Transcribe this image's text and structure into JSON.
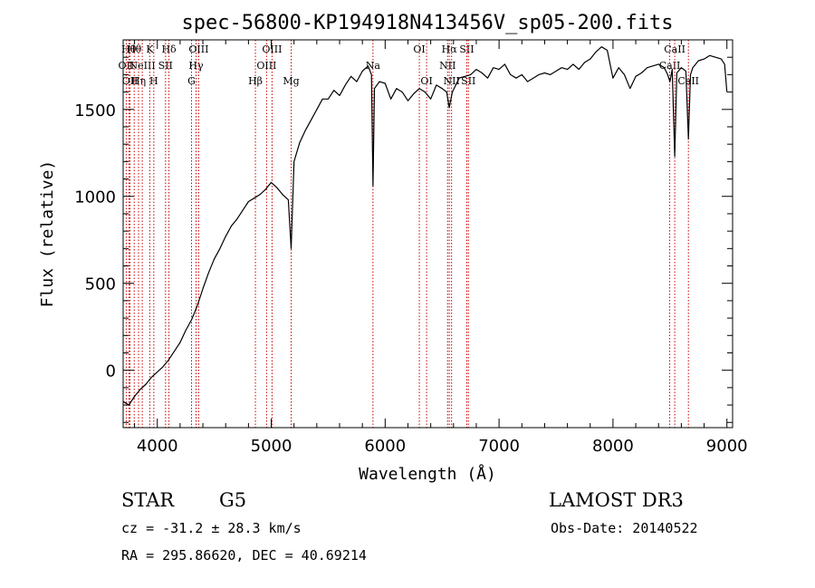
{
  "title": "spec-56800-KP194918N413456V_sp05-200.fits",
  "info": {
    "class": "STAR",
    "subclass": "G5",
    "survey": "LAMOST DR3",
    "cz": "cz = -31.2 ± 28.3 km/s",
    "obs_date": "Obs-Date: 20140522",
    "coords": "RA = 295.86620, DEC =  40.69214"
  },
  "colors": {
    "line_marker": "#cc0000",
    "spectrum": "#000000",
    "axis": "#000000"
  },
  "chart_data": {
    "type": "line",
    "title": "spec-56800-KP194918N413456V_sp05-200.fits",
    "xlabel": "Wavelength (Å)",
    "ylabel": "Flux (relative)",
    "xlim": [
      3700,
      9050
    ],
    "ylim": [
      -330,
      1900
    ],
    "xticks": [
      4000,
      5000,
      6000,
      7000,
      8000,
      9000
    ],
    "yticks": [
      0,
      500,
      1000,
      1500
    ],
    "series": [
      {
        "name": "flux",
        "x": [
          3700,
          3750,
          3800,
          3850,
          3900,
          3950,
          4000,
          4050,
          4100,
          4150,
          4200,
          4250,
          4300,
          4350,
          4400,
          4450,
          4500,
          4550,
          4600,
          4650,
          4700,
          4750,
          4800,
          4850,
          4900,
          4950,
          5000,
          5050,
          5100,
          5150,
          5175,
          5200,
          5250,
          5300,
          5350,
          5400,
          5450,
          5500,
          5550,
          5600,
          5650,
          5700,
          5750,
          5800,
          5850,
          5880,
          5893,
          5906,
          5950,
          6000,
          6050,
          6100,
          6150,
          6200,
          6250,
          6300,
          6350,
          6400,
          6450,
          6500,
          6540,
          6563,
          6590,
          6650,
          6700,
          6750,
          6800,
          6850,
          6900,
          6950,
          7000,
          7050,
          7100,
          7150,
          7200,
          7250,
          7300,
          7350,
          7400,
          7450,
          7500,
          7550,
          7600,
          7650,
          7700,
          7750,
          7800,
          7850,
          7900,
          7950,
          8000,
          8050,
          8100,
          8150,
          8200,
          8250,
          8300,
          8350,
          8400,
          8450,
          8480,
          8500,
          8520,
          8542,
          8560,
          8600,
          8640,
          8662,
          8680,
          8700,
          8750,
          8800,
          8850,
          8900,
          8950,
          8980,
          9000
        ],
        "y": [
          -180,
          -200,
          -150,
          -110,
          -80,
          -40,
          -10,
          20,
          60,
          110,
          160,
          230,
          290,
          370,
          470,
          560,
          640,
          700,
          770,
          830,
          870,
          920,
          970,
          990,
          1010,
          1040,
          1080,
          1050,
          1010,
          980,
          700,
          1200,
          1310,
          1380,
          1440,
          1500,
          1560,
          1560,
          1610,
          1580,
          1640,
          1690,
          1660,
          1720,
          1750,
          1700,
          1060,
          1620,
          1660,
          1650,
          1560,
          1620,
          1600,
          1550,
          1590,
          1620,
          1600,
          1560,
          1640,
          1620,
          1600,
          1510,
          1600,
          1680,
          1690,
          1700,
          1730,
          1710,
          1680,
          1740,
          1730,
          1760,
          1700,
          1680,
          1700,
          1660,
          1680,
          1700,
          1710,
          1700,
          1720,
          1740,
          1730,
          1760,
          1730,
          1770,
          1790,
          1830,
          1860,
          1840,
          1680,
          1740,
          1700,
          1620,
          1690,
          1710,
          1740,
          1750,
          1760,
          1740,
          1700,
          1660,
          1730,
          1230,
          1710,
          1740,
          1720,
          1330,
          1700,
          1740,
          1780,
          1790,
          1810,
          1800,
          1790,
          1760,
          1600
        ]
      }
    ],
    "line_markers": [
      {
        "wave": 3727,
        "label": "OII",
        "row": 2
      },
      {
        "wave": 3750,
        "label": "Hθ",
        "row": 1
      },
      {
        "wave": 3760,
        "label": "OII",
        "row": 3
      },
      {
        "wave": 3797,
        "label": "Hθ",
        "row": 1
      },
      {
        "wave": 3835,
        "label": "Hη",
        "row": 3
      },
      {
        "wave": 3868,
        "label": "NeIII",
        "row": 2
      },
      {
        "wave": 3934,
        "label": "K",
        "row": 1
      },
      {
        "wave": 3969,
        "label": "H",
        "row": 3
      },
      {
        "wave": 4072,
        "label": "SII",
        "row": 2
      },
      {
        "wave": 4102,
        "label": "Hδ",
        "row": 1
      },
      {
        "wave": 4300,
        "label": "G",
        "row": 3
      },
      {
        "wave": 4340,
        "label": "Hγ",
        "row": 2
      },
      {
        "wave": 4363,
        "label": "OIII",
        "row": 1
      },
      {
        "wave": 4861,
        "label": "Hβ",
        "row": 3
      },
      {
        "wave": 4959,
        "label": "OIII",
        "row": 2
      },
      {
        "wave": 5007,
        "label": "OIII",
        "row": 1
      },
      {
        "wave": 5175,
        "label": "Mg",
        "row": 3
      },
      {
        "wave": 5893,
        "label": "Na",
        "row": 2
      },
      {
        "wave": 6300,
        "label": "OI",
        "row": 1
      },
      {
        "wave": 6364,
        "label": "OI",
        "row": 3
      },
      {
        "wave": 6548,
        "label": "NII",
        "row": 2
      },
      {
        "wave": 6563,
        "label": "Hα",
        "row": 1
      },
      {
        "wave": 6583,
        "label": "NII",
        "row": 3
      },
      {
        "wave": 6717,
        "label": "SII",
        "row": 1
      },
      {
        "wave": 6731,
        "label": "SII",
        "row": 3
      },
      {
        "wave": 8498,
        "label": "CaII",
        "row": 2
      },
      {
        "wave": 8542,
        "label": "CaII",
        "row": 1
      },
      {
        "wave": 8662,
        "label": "CaII",
        "row": 3
      }
    ]
  }
}
